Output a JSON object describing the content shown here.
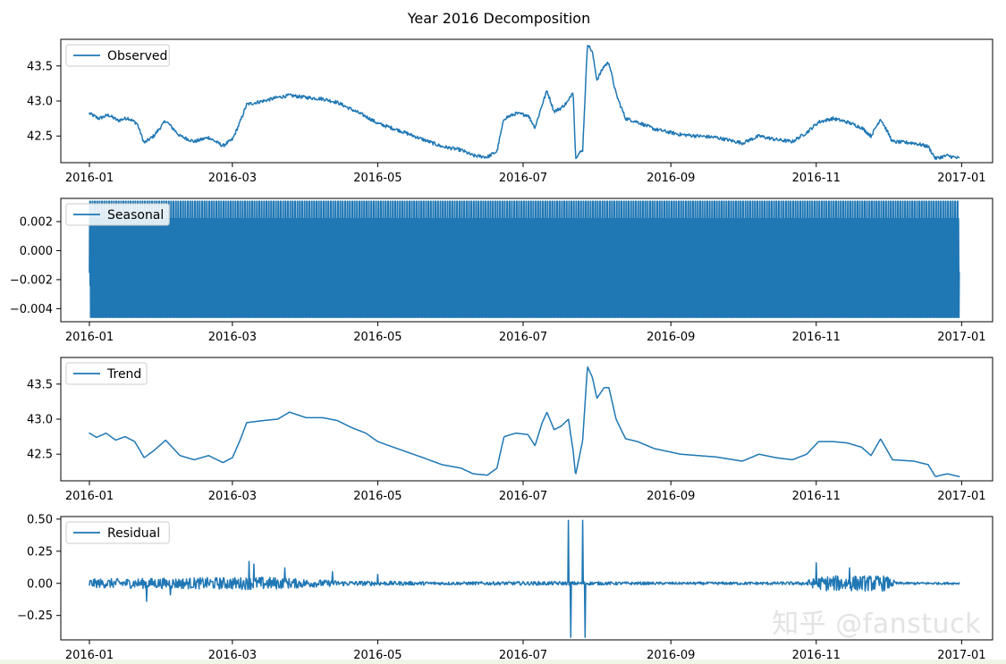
{
  "title": "Year 2016 Decomposition",
  "watermark": "知乎 @fanstuck",
  "chart_data": [
    {
      "type": "line",
      "title": "Observed",
      "legend": "upper-left",
      "color": "#1f77b4",
      "xlim": [
        "2015-12-20",
        "2017-01-14"
      ],
      "ylim": [
        42.12,
        43.88
      ],
      "xticks": [
        "2016-01",
        "2016-03",
        "2016-05",
        "2016-07",
        "2016-09",
        "2016-11",
        "2017-01"
      ],
      "yticks": [
        {
          "v": 42.5,
          "label": "42.5"
        },
        {
          "v": 43.0,
          "label": "43.0"
        },
        {
          "v": 43.5,
          "label": "43.5"
        }
      ],
      "series": [
        {
          "name": "Observed",
          "noise": 0.025,
          "points": [
            [
              "2016-01-01",
              42.82
            ],
            [
              "2016-01-05",
              42.75
            ],
            [
              "2016-01-09",
              42.8
            ],
            [
              "2016-01-13",
              42.72
            ],
            [
              "2016-01-17",
              42.76
            ],
            [
              "2016-01-21",
              42.68
            ],
            [
              "2016-01-24",
              42.4
            ],
            [
              "2016-01-28",
              42.5
            ],
            [
              "2016-02-02",
              42.72
            ],
            [
              "2016-02-08",
              42.5
            ],
            [
              "2016-02-14",
              42.42
            ],
            [
              "2016-02-20",
              42.48
            ],
            [
              "2016-02-26",
              42.36
            ],
            [
              "2016-03-01",
              42.45
            ],
            [
              "2016-03-04",
              42.68
            ],
            [
              "2016-03-07",
              42.95
            ],
            [
              "2016-03-14",
              43.0
            ],
            [
              "2016-03-20",
              43.05
            ],
            [
              "2016-03-25",
              43.08
            ],
            [
              "2016-04-01",
              43.05
            ],
            [
              "2016-04-08",
              43.03
            ],
            [
              "2016-04-14",
              42.98
            ],
            [
              "2016-04-20",
              42.88
            ],
            [
              "2016-04-26",
              42.78
            ],
            [
              "2016-05-01",
              42.68
            ],
            [
              "2016-05-10",
              42.58
            ],
            [
              "2016-05-20",
              42.45
            ],
            [
              "2016-05-28",
              42.35
            ],
            [
              "2016-06-05",
              42.3
            ],
            [
              "2016-06-10",
              42.22
            ],
            [
              "2016-06-16",
              42.2
            ],
            [
              "2016-06-20",
              42.28
            ],
            [
              "2016-06-23",
              42.75
            ],
            [
              "2016-06-28",
              42.82
            ],
            [
              "2016-07-03",
              42.8
            ],
            [
              "2016-07-06",
              42.62
            ],
            [
              "2016-07-09",
              42.95
            ],
            [
              "2016-07-11",
              43.15
            ],
            [
              "2016-07-14",
              42.85
            ],
            [
              "2016-07-17",
              42.9
            ],
            [
              "2016-07-20",
              43.0
            ],
            [
              "2016-07-22",
              43.15
            ],
            [
              "2016-07-23",
              42.2
            ],
            [
              "2016-07-26",
              42.3
            ],
            [
              "2016-07-28",
              43.82
            ],
            [
              "2016-07-30",
              43.7
            ],
            [
              "2016-08-01",
              43.3
            ],
            [
              "2016-08-04",
              43.5
            ],
            [
              "2016-08-06",
              43.55
            ],
            [
              "2016-08-09",
              43.1
            ],
            [
              "2016-08-13",
              42.75
            ],
            [
              "2016-08-18",
              42.7
            ],
            [
              "2016-08-25",
              42.6
            ],
            [
              "2016-09-05",
              42.52
            ],
            [
              "2016-09-20",
              42.48
            ],
            [
              "2016-10-01",
              42.4
            ],
            [
              "2016-10-08",
              42.5
            ],
            [
              "2016-10-15",
              42.45
            ],
            [
              "2016-10-22",
              42.42
            ],
            [
              "2016-10-28",
              42.55
            ],
            [
              "2016-11-02",
              42.7
            ],
            [
              "2016-11-08",
              42.75
            ],
            [
              "2016-11-14",
              42.7
            ],
            [
              "2016-11-20",
              42.62
            ],
            [
              "2016-11-24",
              42.5
            ],
            [
              "2016-11-28",
              42.75
            ],
            [
              "2016-12-03",
              42.42
            ],
            [
              "2016-12-12",
              42.4
            ],
            [
              "2016-12-18",
              42.35
            ],
            [
              "2016-12-21",
              42.18
            ],
            [
              "2016-12-26",
              42.22
            ],
            [
              "2016-12-31",
              42.18
            ]
          ]
        }
      ]
    },
    {
      "type": "line",
      "title": "Seasonal",
      "legend": "upper-left",
      "color": "#1f77b4",
      "xlim": [
        "2015-12-20",
        "2017-01-14"
      ],
      "ylim": [
        -0.0049,
        0.0036
      ],
      "xticks": [
        "2016-01",
        "2016-03",
        "2016-05",
        "2016-07",
        "2016-09",
        "2016-11",
        "2017-01"
      ],
      "yticks": [
        {
          "v": -0.004,
          "label": "−0.004"
        },
        {
          "v": -0.002,
          "label": "−0.002"
        },
        {
          "v": 0.0,
          "label": "0.000"
        },
        {
          "v": 0.002,
          "label": "0.002"
        }
      ],
      "series": [
        {
          "name": "Seasonal",
          "period_days": 1,
          "start": "2016-01-01",
          "end": "2016-12-31",
          "cycle": [
            -0.0015,
            0.0012,
            0.0034,
            -0.0024,
            0.0034,
            -0.0046,
            0.0008,
            0.0022,
            -0.0018,
            -0.0046
          ]
        }
      ]
    },
    {
      "type": "line",
      "title": "Trend",
      "legend": "upper-left",
      "color": "#1f77b4",
      "xlim": [
        "2015-12-20",
        "2017-01-14"
      ],
      "ylim": [
        42.12,
        43.88
      ],
      "xticks": [
        "2016-01",
        "2016-03",
        "2016-05",
        "2016-07",
        "2016-09",
        "2016-11",
        "2017-01"
      ],
      "yticks": [
        {
          "v": 42.5,
          "label": "42.5"
        },
        {
          "v": 43.0,
          "label": "43.0"
        },
        {
          "v": 43.5,
          "label": "43.5"
        }
      ],
      "series": [
        {
          "name": "Trend",
          "noise": 0.0,
          "points": [
            [
              "2016-01-01",
              42.8
            ],
            [
              "2016-01-04",
              42.74
            ],
            [
              "2016-01-08",
              42.8
            ],
            [
              "2016-01-12",
              42.7
            ],
            [
              "2016-01-16",
              42.75
            ],
            [
              "2016-01-20",
              42.68
            ],
            [
              "2016-01-24",
              42.45
            ],
            [
              "2016-01-28",
              42.55
            ],
            [
              "2016-02-02",
              42.7
            ],
            [
              "2016-02-08",
              42.48
            ],
            [
              "2016-02-14",
              42.42
            ],
            [
              "2016-02-20",
              42.48
            ],
            [
              "2016-02-26",
              42.38
            ],
            [
              "2016-03-01",
              42.45
            ],
            [
              "2016-03-04",
              42.68
            ],
            [
              "2016-03-07",
              42.95
            ],
            [
              "2016-03-14",
              42.98
            ],
            [
              "2016-03-20",
              43.0
            ],
            [
              "2016-03-25",
              43.1
            ],
            [
              "2016-04-01",
              43.02
            ],
            [
              "2016-04-08",
              43.02
            ],
            [
              "2016-04-14",
              42.98
            ],
            [
              "2016-04-20",
              42.88
            ],
            [
              "2016-04-26",
              42.8
            ],
            [
              "2016-05-01",
              42.68
            ],
            [
              "2016-05-10",
              42.57
            ],
            [
              "2016-05-20",
              42.45
            ],
            [
              "2016-05-28",
              42.35
            ],
            [
              "2016-06-05",
              42.3
            ],
            [
              "2016-06-10",
              42.22
            ],
            [
              "2016-06-16",
              42.2
            ],
            [
              "2016-06-20",
              42.3
            ],
            [
              "2016-06-23",
              42.75
            ],
            [
              "2016-06-28",
              42.8
            ],
            [
              "2016-07-03",
              42.78
            ],
            [
              "2016-07-06",
              42.62
            ],
            [
              "2016-07-09",
              42.95
            ],
            [
              "2016-07-11",
              43.1
            ],
            [
              "2016-07-14",
              42.85
            ],
            [
              "2016-07-17",
              42.9
            ],
            [
              "2016-07-20",
              43.0
            ],
            [
              "2016-07-22",
              42.55
            ],
            [
              "2016-07-23",
              42.2
            ],
            [
              "2016-07-26",
              42.7
            ],
            [
              "2016-07-28",
              43.75
            ],
            [
              "2016-07-30",
              43.6
            ],
            [
              "2016-08-01",
              43.3
            ],
            [
              "2016-08-04",
              43.45
            ],
            [
              "2016-08-06",
              43.45
            ],
            [
              "2016-08-09",
              43.0
            ],
            [
              "2016-08-13",
              42.72
            ],
            [
              "2016-08-18",
              42.68
            ],
            [
              "2016-08-25",
              42.58
            ],
            [
              "2016-09-05",
              42.5
            ],
            [
              "2016-09-20",
              42.46
            ],
            [
              "2016-10-01",
              42.4
            ],
            [
              "2016-10-08",
              42.5
            ],
            [
              "2016-10-15",
              42.45
            ],
            [
              "2016-10-22",
              42.42
            ],
            [
              "2016-10-28",
              42.5
            ],
            [
              "2016-11-02",
              42.68
            ],
            [
              "2016-11-08",
              42.68
            ],
            [
              "2016-11-14",
              42.66
            ],
            [
              "2016-11-20",
              42.6
            ],
            [
              "2016-11-24",
              42.48
            ],
            [
              "2016-11-28",
              42.72
            ],
            [
              "2016-12-03",
              42.42
            ],
            [
              "2016-12-12",
              42.4
            ],
            [
              "2016-12-18",
              42.35
            ],
            [
              "2016-12-21",
              42.18
            ],
            [
              "2016-12-26",
              42.22
            ],
            [
              "2016-12-31",
              42.18
            ]
          ]
        }
      ]
    },
    {
      "type": "line",
      "title": "Residual",
      "legend": "upper-left",
      "color": "#1f77b4",
      "xlim": [
        "2015-12-20",
        "2017-01-14"
      ],
      "ylim": [
        -0.44,
        0.52
      ],
      "xticks": [
        "2016-01",
        "2016-03",
        "2016-05",
        "2016-07",
        "2016-09",
        "2016-11",
        "2017-01"
      ],
      "yticks": [
        {
          "v": -0.25,
          "label": "−0.25"
        },
        {
          "v": 0.0,
          "label": "0.00"
        },
        {
          "v": 0.25,
          "label": "0.25"
        },
        {
          "v": 0.5,
          "label": "0.50"
        }
      ],
      "series": [
        {
          "name": "Residual",
          "start": "2016-01-01",
          "end": "2016-12-31",
          "amplitude": [
            [
              "2016-01-01",
              0.035
            ],
            [
              "2016-03-15",
              0.05
            ],
            [
              "2016-04-15",
              0.02
            ],
            [
              "2016-06-01",
              0.012
            ],
            [
              "2016-07-10",
              0.015
            ],
            [
              "2016-09-01",
              0.01
            ],
            [
              "2016-10-25",
              0.012
            ],
            [
              "2016-11-05",
              0.06
            ],
            [
              "2016-11-30",
              0.06
            ],
            [
              "2016-12-05",
              0.01
            ],
            [
              "2016-12-31",
              0.008
            ]
          ],
          "spikes": [
            [
              "2016-01-25",
              -0.14
            ],
            [
              "2016-02-04",
              -0.09
            ],
            [
              "2016-03-08",
              0.17
            ],
            [
              "2016-03-10",
              0.15
            ],
            [
              "2016-03-23",
              0.12
            ],
            [
              "2016-04-12",
              0.09
            ],
            [
              "2016-05-01",
              0.07
            ],
            [
              "2016-07-20",
              0.49
            ],
            [
              "2016-07-21",
              -0.42
            ],
            [
              "2016-07-26",
              0.49
            ],
            [
              "2016-07-27",
              -0.42
            ],
            [
              "2016-11-01",
              0.16
            ],
            [
              "2016-11-15",
              0.12
            ]
          ]
        }
      ]
    }
  ]
}
